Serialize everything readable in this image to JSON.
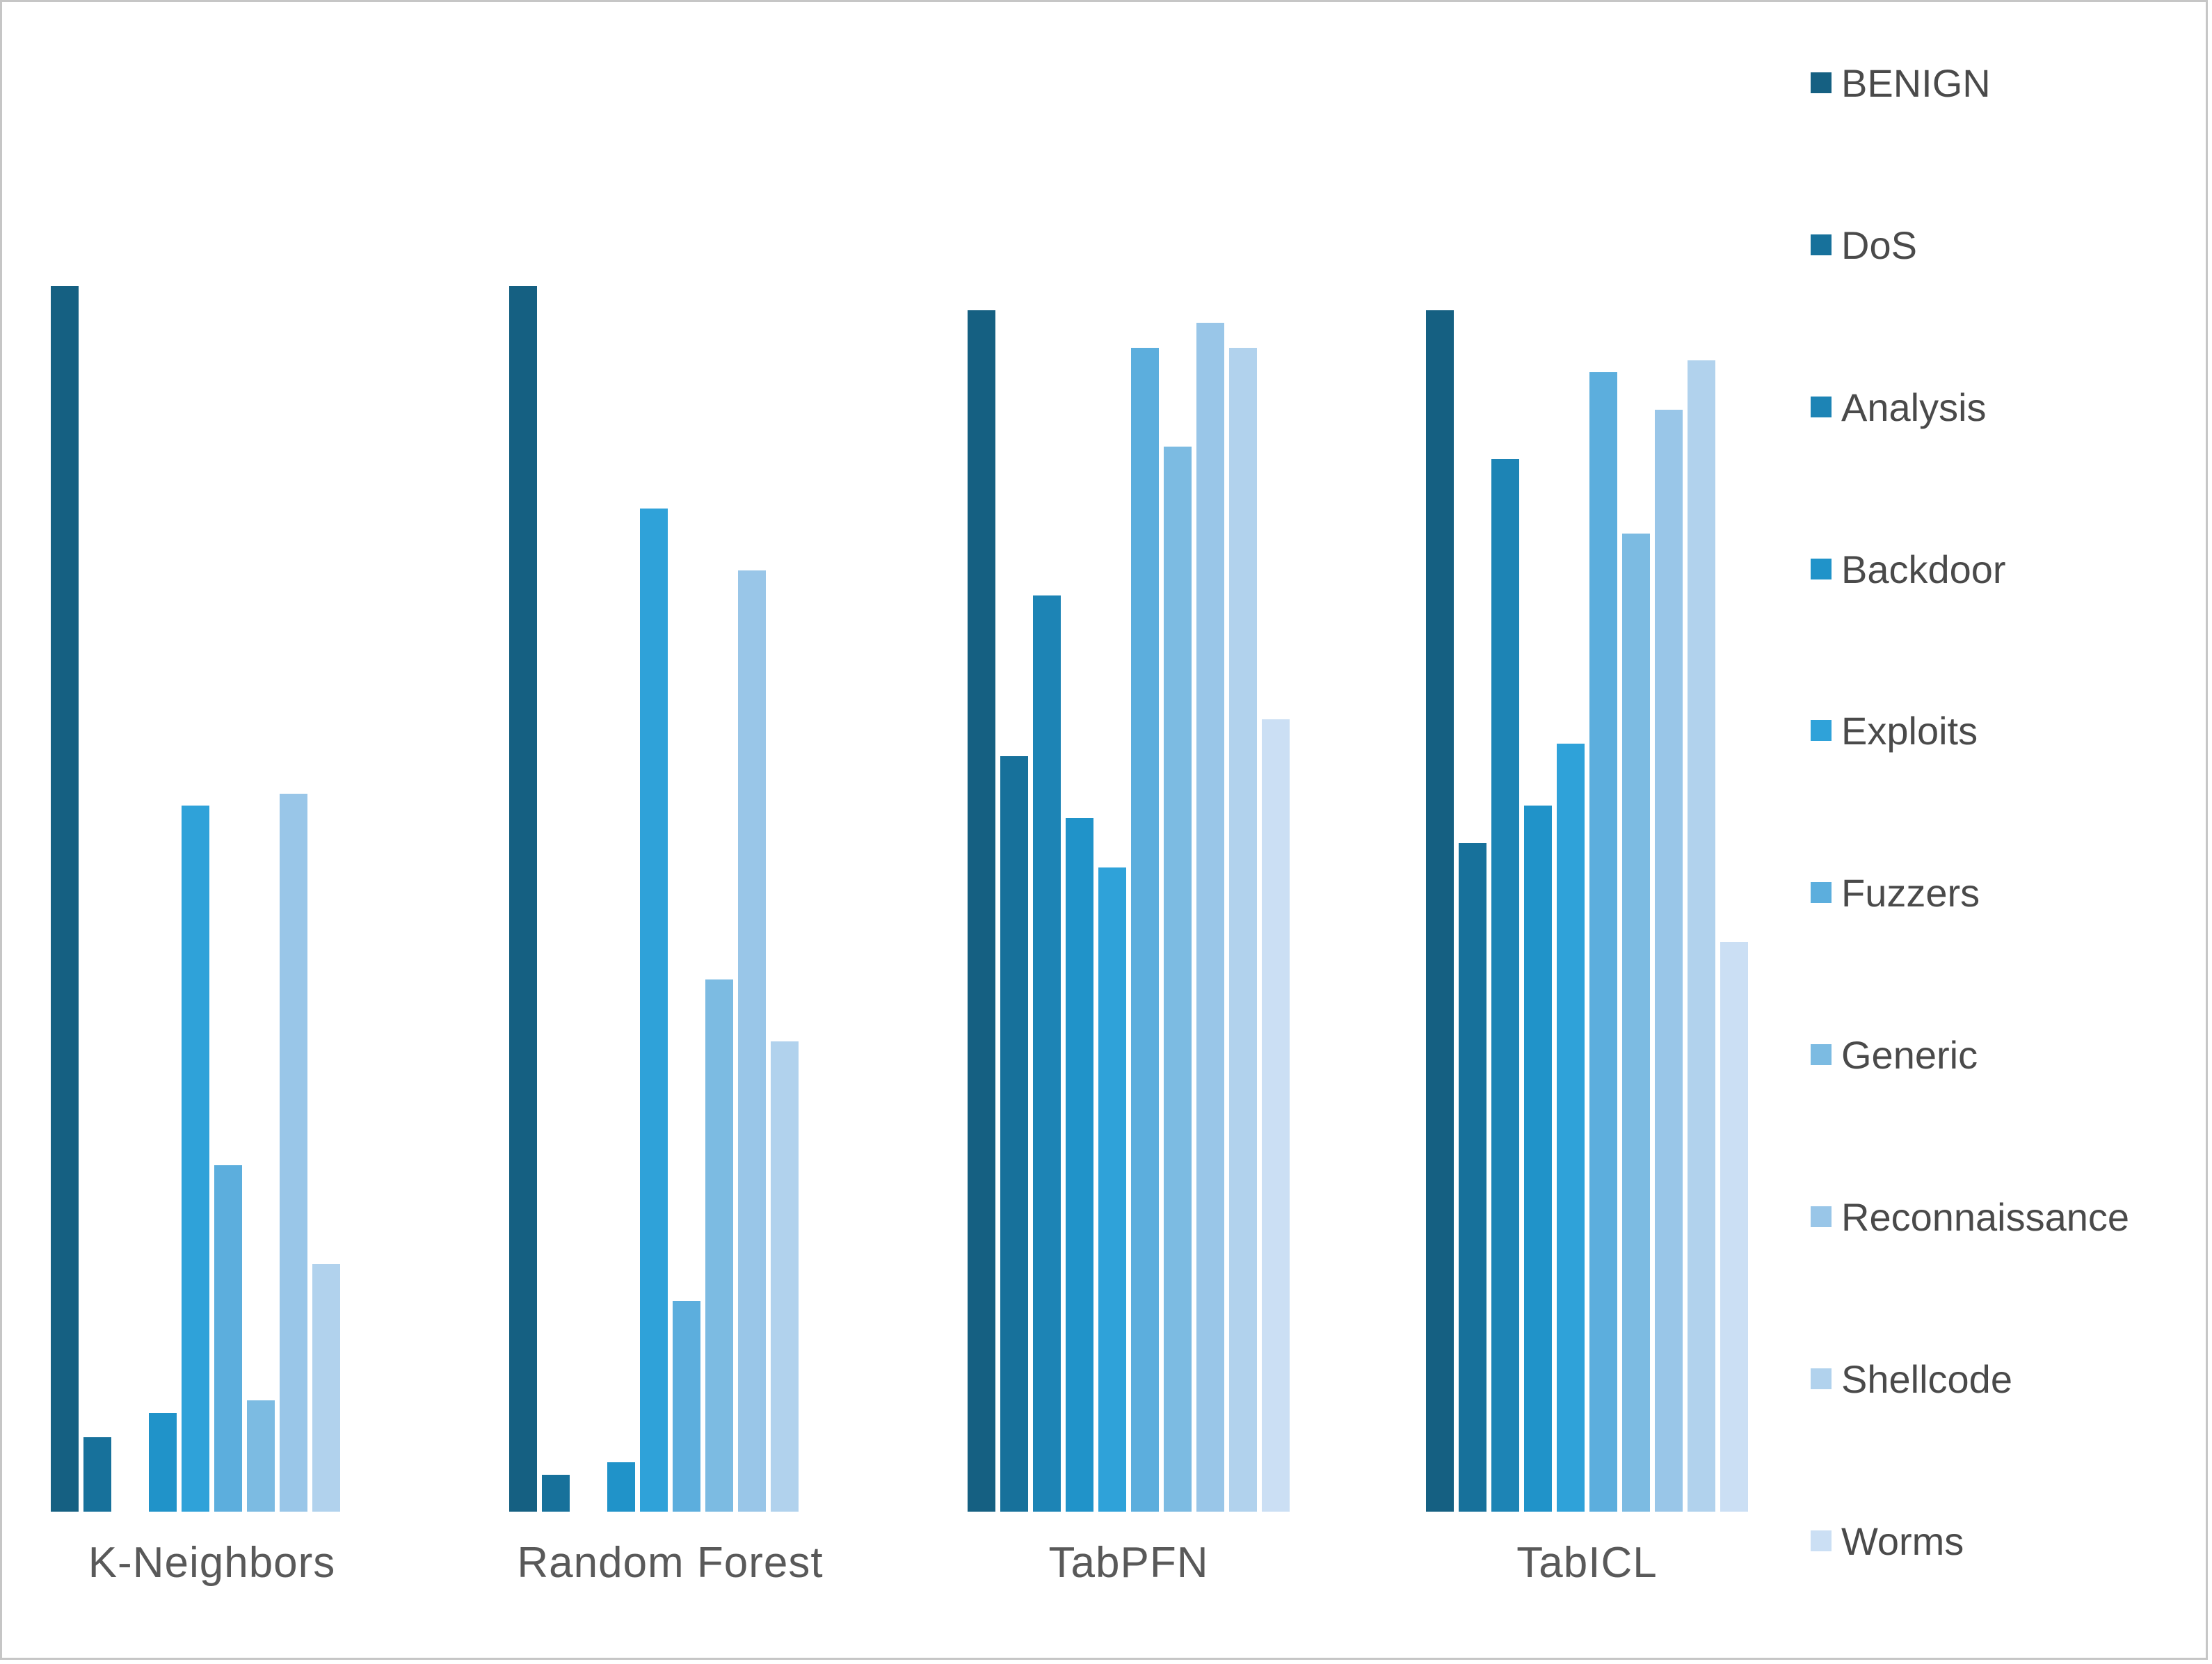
{
  "chart_data": {
    "type": "bar",
    "title": "",
    "xlabel": "",
    "ylabel": "",
    "ylim": [
      0,
      1
    ],
    "grid": false,
    "legend_position": "right",
    "categories": [
      "K-Neighbors",
      "Random Forest",
      "TabPFN",
      "TabICL"
    ],
    "series": [
      {
        "name": "BENIGN",
        "color": "#156082",
        "values": [
          0.99,
          0.99,
          0.97,
          0.97
        ]
      },
      {
        "name": "DoS",
        "color": "#17719b",
        "values": [
          0.06,
          0.03,
          0.61,
          0.54
        ]
      },
      {
        "name": "Analysis",
        "color": "#1d84b5",
        "values": [
          0.0,
          0.0,
          0.74,
          0.85
        ]
      },
      {
        "name": "Backdoor",
        "color": "#2093c9",
        "values": [
          0.08,
          0.04,
          0.56,
          0.57
        ]
      },
      {
        "name": "Exploits",
        "color": "#2fa2d9",
        "values": [
          0.57,
          0.81,
          0.52,
          0.62
        ]
      },
      {
        "name": "Fuzzers",
        "color": "#5caedd",
        "values": [
          0.28,
          0.17,
          0.94,
          0.92
        ]
      },
      {
        "name": "Generic",
        "color": "#7cbbe2",
        "values": [
          0.09,
          0.43,
          0.86,
          0.79
        ]
      },
      {
        "name": "Reconnaissance",
        "color": "#99c6e8",
        "values": [
          0.58,
          0.76,
          0.96,
          0.89
        ]
      },
      {
        "name": "Shellcode",
        "color": "#b1d2ed",
        "values": [
          0.2,
          0.38,
          0.94,
          0.93
        ]
      },
      {
        "name": "Worms",
        "color": "#cbdff4",
        "values": [
          0.0,
          0.0,
          0.64,
          0.46
        ]
      }
    ]
  },
  "frame": {
    "background": "#ffffff",
    "border_color": "#c6c6c6",
    "label_color": "#595959"
  }
}
